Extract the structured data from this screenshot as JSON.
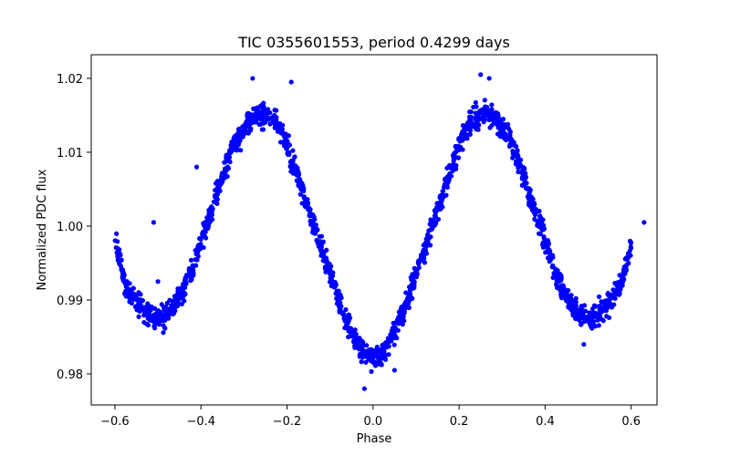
{
  "chart_data": {
    "type": "scatter",
    "title": "TIC 0355601553, period 0.4299 days",
    "xlabel": "Phase",
    "ylabel": "Normalized PDC flux",
    "xlim": [
      -0.655,
      0.66
    ],
    "ylim": [
      0.9758,
      1.0232
    ],
    "xticks": [
      -0.6,
      -0.4,
      -0.2,
      0.0,
      0.2,
      0.4,
      0.6
    ],
    "xtick_labels": [
      "−0.6",
      "−0.4",
      "−0.2",
      "0.0",
      "0.2",
      "0.4",
      "0.6"
    ],
    "yticks": [
      0.98,
      0.99,
      1.0,
      1.01,
      1.02
    ],
    "ytick_labels": [
      "0.98",
      "0.99",
      "1.00",
      "1.01",
      "1.02"
    ],
    "grid": false,
    "marker_color": "#0000ff",
    "series": [
      {
        "x": [
          -0.6,
          -0.58,
          -0.56,
          -0.54,
          -0.52,
          -0.5,
          -0.48,
          -0.46,
          -0.44,
          -0.42,
          -0.4,
          -0.38,
          -0.36,
          -0.34,
          -0.32,
          -0.3,
          -0.28,
          -0.26,
          -0.24,
          -0.22,
          -0.2,
          -0.18,
          -0.16,
          -0.14,
          -0.12,
          -0.1,
          -0.08,
          -0.06,
          -0.04,
          -0.02,
          0.0,
          0.02,
          0.04,
          0.06,
          0.08,
          0.1,
          0.12,
          0.14,
          0.16,
          0.18,
          0.2,
          0.22,
          0.24,
          0.26,
          0.28,
          0.3,
          0.32,
          0.34,
          0.36,
          0.38,
          0.4,
          0.42,
          0.44,
          0.46,
          0.48,
          0.5,
          0.52,
          0.54,
          0.56,
          0.58,
          0.6
        ],
        "y": [
          0.9985,
          0.993,
          0.9905,
          0.989,
          0.988,
          0.9875,
          0.988,
          0.9895,
          0.9915,
          0.9945,
          0.998,
          1.0015,
          1.005,
          1.0085,
          1.0115,
          1.0135,
          1.0148,
          1.0152,
          1.0148,
          1.0135,
          1.011,
          1.0075,
          1.004,
          1.0005,
          0.997,
          0.9935,
          0.99,
          0.987,
          0.9845,
          0.9828,
          0.9822,
          0.9828,
          0.9845,
          0.987,
          0.99,
          0.9935,
          0.997,
          1.0005,
          1.004,
          1.0075,
          1.011,
          1.0135,
          1.0148,
          1.0152,
          1.0148,
          1.0135,
          1.0115,
          1.0085,
          1.005,
          1.0015,
          0.998,
          0.9945,
          0.9915,
          0.9895,
          0.988,
          0.9875,
          0.988,
          0.989,
          0.9905,
          0.993,
          0.9975
        ],
        "jitter": 0.0013,
        "points_per_step": 30
      }
    ],
    "outliers": {
      "x": [
        -0.51,
        -0.5,
        -0.19,
        -0.28,
        -0.41,
        0.25,
        0.27,
        0.63,
        0.57,
        0.49,
        -0.02,
        0.05
      ],
      "y": [
        1.0005,
        0.9925,
        1.0195,
        1.02,
        1.008,
        1.0205,
        1.02,
        1.0005,
        0.992,
        0.984,
        0.978,
        0.9805
      ]
    }
  }
}
